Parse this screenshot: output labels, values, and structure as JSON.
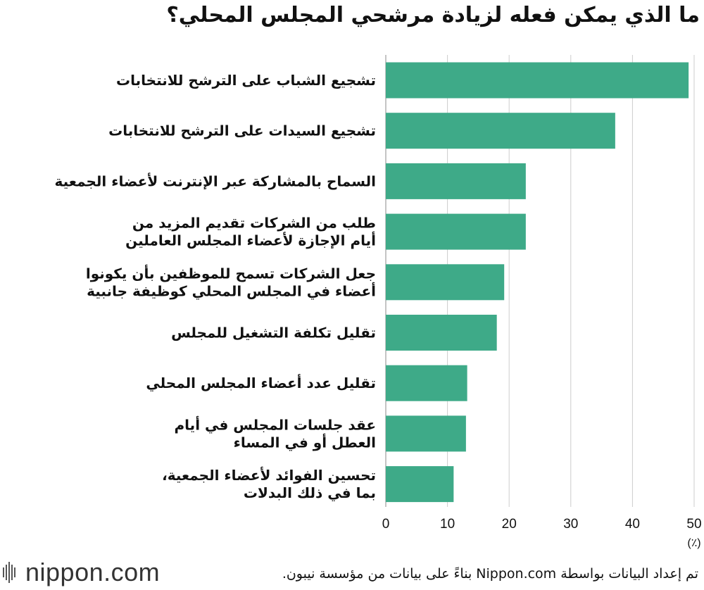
{
  "title": "ما الذي يمكن فعله لزيادة مرشحي المجلس المحلي؟",
  "colors": {
    "bar": "#3eaa88",
    "grid": "#cccccc",
    "text": "#111111"
  },
  "chart_data": {
    "type": "bar",
    "orientation": "horizontal",
    "categories": [
      [
        "تشجيع الشباب على الترشح للانتخابات"
      ],
      [
        "تشجيع السيدات على الترشح للانتخابات"
      ],
      [
        "السماح بالمشاركة عبر الإنترنت لأعضاء الجمعية"
      ],
      [
        "طلب من الشركات تقديم المزيد من",
        "أيام الإجازة لأعضاء المجلس العاملين"
      ],
      [
        "جعل الشركات تسمح للموظفين بأن يكونوا",
        "أعضاء في المجلس المحلي كوظيفة جانبية"
      ],
      [
        "تقليل تكلفة التشغيل للمجلس"
      ],
      [
        "تقليل عدد أعضاء المجلس المحلي"
      ],
      [
        "عقد جلسات المجلس في أيام",
        "العطل أو في المساء"
      ],
      [
        "تحسين الفوائد لأعضاء الجمعية،",
        "بما في ذلك البدلات"
      ]
    ],
    "values": [
      49.1,
      37.2,
      22.7,
      22.7,
      19.2,
      18.0,
      13.2,
      13.0,
      11.0
    ],
    "xlim": [
      0,
      50
    ],
    "xticks": [
      0,
      10,
      20,
      30,
      40,
      50
    ],
    "xunit": "(٪)",
    "grid": true
  },
  "footer": {
    "logo_text": "nippon.com",
    "source": "تم إعداد البيانات بواسطة Nippon.com بناءً على بيانات من مؤسسة نيبون."
  }
}
